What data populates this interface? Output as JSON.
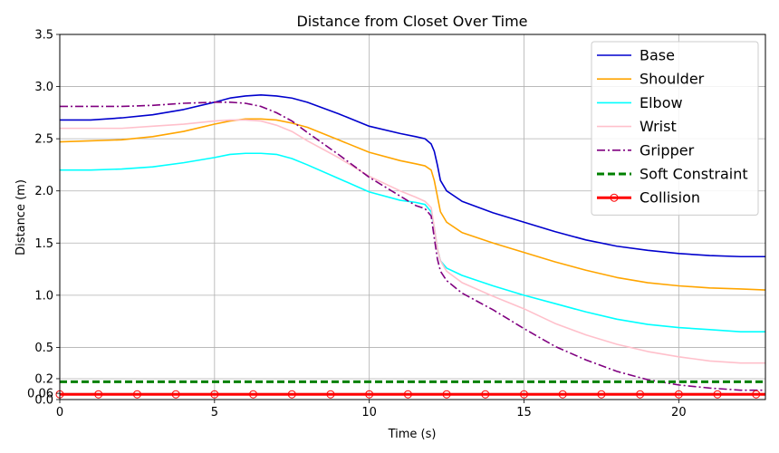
{
  "chart_data": {
    "type": "line",
    "title": "Distance from Closet Over Time",
    "xlabel": "Time (s)",
    "ylabel": "Distance (m)",
    "xlim": [
      0,
      22.8
    ],
    "ylim": [
      0,
      3.5
    ],
    "grid": true,
    "legend_position": "top-right",
    "x_ticks": [
      0,
      5,
      10,
      15,
      20
    ],
    "y_ticks": [
      0.0,
      0.06,
      0.2,
      0.5,
      1.0,
      1.5,
      2.0,
      2.5,
      3.0,
      3.5
    ],
    "y_tick_labels": [
      "0.0",
      "0.06",
      "0.2",
      "0.5",
      "1.0",
      "1.5",
      "2.0",
      "2.5",
      "3.0",
      "3.5"
    ],
    "x": [
      0,
      1,
      2,
      3,
      4,
      5,
      5.5,
      6,
      6.5,
      7,
      7.5,
      8,
      9,
      10,
      11,
      11.5,
      11.8,
      12.0,
      12.1,
      12.2,
      12.3,
      12.5,
      13,
      14,
      15,
      16,
      17,
      18,
      19,
      20,
      21,
      22,
      22.8
    ],
    "series": [
      {
        "name": "Base",
        "color": "#0000cd",
        "dash": "solid",
        "marker": "none",
        "values": [
          2.68,
          2.68,
          2.7,
          2.73,
          2.78,
          2.85,
          2.89,
          2.91,
          2.92,
          2.91,
          2.89,
          2.85,
          2.74,
          2.62,
          2.55,
          2.52,
          2.5,
          2.45,
          2.38,
          2.25,
          2.1,
          2.0,
          1.9,
          1.79,
          1.7,
          1.61,
          1.53,
          1.47,
          1.43,
          1.4,
          1.38,
          1.37,
          1.37
        ]
      },
      {
        "name": "Shoulder",
        "color": "#ffa500",
        "dash": "solid",
        "marker": "none",
        "values": [
          2.47,
          2.48,
          2.49,
          2.52,
          2.57,
          2.64,
          2.67,
          2.69,
          2.69,
          2.68,
          2.65,
          2.61,
          2.49,
          2.37,
          2.29,
          2.26,
          2.24,
          2.2,
          2.1,
          1.95,
          1.8,
          1.7,
          1.6,
          1.5,
          1.41,
          1.32,
          1.24,
          1.17,
          1.12,
          1.09,
          1.07,
          1.06,
          1.05
        ]
      },
      {
        "name": "Elbow",
        "color": "#00ffff",
        "dash": "solid",
        "marker": "none",
        "values": [
          2.2,
          2.2,
          2.21,
          2.23,
          2.27,
          2.32,
          2.35,
          2.36,
          2.36,
          2.35,
          2.31,
          2.25,
          2.12,
          1.99,
          1.91,
          1.89,
          1.87,
          1.8,
          1.65,
          1.45,
          1.33,
          1.26,
          1.19,
          1.09,
          1.0,
          0.92,
          0.84,
          0.77,
          0.72,
          0.69,
          0.67,
          0.65,
          0.65
        ]
      },
      {
        "name": "Wrist",
        "color": "#ffc0cb",
        "dash": "solid",
        "marker": "none",
        "values": [
          2.6,
          2.6,
          2.6,
          2.62,
          2.64,
          2.67,
          2.68,
          2.68,
          2.67,
          2.63,
          2.57,
          2.48,
          2.32,
          2.14,
          2.0,
          1.94,
          1.9,
          1.84,
          1.65,
          1.45,
          1.33,
          1.23,
          1.12,
          0.99,
          0.87,
          0.73,
          0.62,
          0.53,
          0.46,
          0.41,
          0.37,
          0.35,
          0.35
        ]
      },
      {
        "name": "Gripper",
        "color": "#800080",
        "dash": "dashdot",
        "marker": "none",
        "values": [
          2.81,
          2.81,
          2.81,
          2.82,
          2.84,
          2.85,
          2.85,
          2.84,
          2.81,
          2.75,
          2.67,
          2.56,
          2.35,
          2.13,
          1.95,
          1.86,
          1.83,
          1.76,
          1.55,
          1.35,
          1.23,
          1.14,
          1.02,
          0.86,
          0.68,
          0.51,
          0.38,
          0.27,
          0.19,
          0.14,
          0.11,
          0.09,
          0.09
        ]
      },
      {
        "name": "Soft Constraint",
        "color": "#008000",
        "dash": "dashed",
        "marker": "none",
        "values": [
          0.17,
          0.17,
          0.17,
          0.17,
          0.17,
          0.17,
          0.17,
          0.17,
          0.17,
          0.17,
          0.17,
          0.17,
          0.17,
          0.17,
          0.17,
          0.17,
          0.17,
          0.17,
          0.17,
          0.17,
          0.17,
          0.17,
          0.17,
          0.17,
          0.17,
          0.17,
          0.17,
          0.17,
          0.17,
          0.17,
          0.17,
          0.17,
          0.17
        ]
      },
      {
        "name": "Collision",
        "color": "#ff0000",
        "dash": "solid",
        "marker": "circle",
        "values": [
          0.05,
          0.05,
          0.05,
          0.05,
          0.05,
          0.05,
          0.05,
          0.05,
          0.05,
          0.05,
          0.05,
          0.05,
          0.05,
          0.05,
          0.05,
          0.05,
          0.05,
          0.05,
          0.05,
          0.05,
          0.05,
          0.05,
          0.05,
          0.05,
          0.05,
          0.05,
          0.05,
          0.05,
          0.05,
          0.05,
          0.05,
          0.05,
          0.05
        ],
        "marker_x": [
          0,
          1.25,
          2.5,
          3.75,
          5,
          6.25,
          7.5,
          8.75,
          10,
          11.25,
          12.5,
          13.75,
          15,
          16.25,
          17.5,
          18.75,
          20,
          21.25,
          22.5
        ]
      }
    ]
  }
}
